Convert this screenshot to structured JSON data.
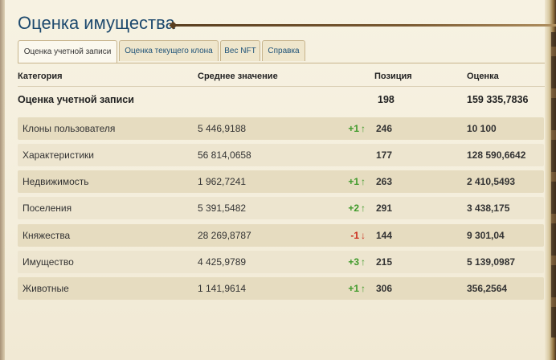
{
  "page": {
    "title": "Оценка имущества"
  },
  "tabs": [
    {
      "label": "Оценка учетной записи",
      "active": true
    },
    {
      "label": "Оценка текущего клона",
      "active": false
    },
    {
      "label": "Вес NFT",
      "active": false
    },
    {
      "label": "Справка",
      "active": false
    }
  ],
  "table": {
    "headers": {
      "category": "Категория",
      "average": "Среднее значение",
      "position": "Позиция",
      "score": "Оценка"
    },
    "summary": {
      "label": "Оценка учетной записи",
      "position": "198",
      "score": "159 335,7836"
    },
    "rows": [
      {
        "name": "Клоны пользователя",
        "average": "5 446,9188",
        "change": "+1",
        "direction": "up",
        "position": "246",
        "score": "10 100"
      },
      {
        "name": "Характеристики",
        "average": "56 814,0658",
        "change": "",
        "direction": "",
        "position": "177",
        "score": "128 590,6642"
      },
      {
        "name": "Недвижимость",
        "average": "1 962,7241",
        "change": "+1",
        "direction": "up",
        "position": "263",
        "score": "2 410,5493"
      },
      {
        "name": "Поселения",
        "average": "5 391,5482",
        "change": "+2",
        "direction": "up",
        "position": "291",
        "score": "3 438,175"
      },
      {
        "name": "Княжества",
        "average": "28 269,8787",
        "change": "-1",
        "direction": "down",
        "position": "144",
        "score": "9 301,04"
      },
      {
        "name": "Имущество",
        "average": "4 425,9789",
        "change": "+3",
        "direction": "up",
        "position": "215",
        "score": "5 139,0987"
      },
      {
        "name": "Животные",
        "average": "1 141,9614",
        "change": "+1",
        "direction": "up",
        "position": "306",
        "score": "356,2564"
      }
    ]
  },
  "colors": {
    "title": "#1e4a6e",
    "up": "#3f9a2a",
    "down": "#cc2a1a"
  },
  "icons": {
    "up": "arrow-up-icon",
    "down": "arrow-down-icon"
  }
}
